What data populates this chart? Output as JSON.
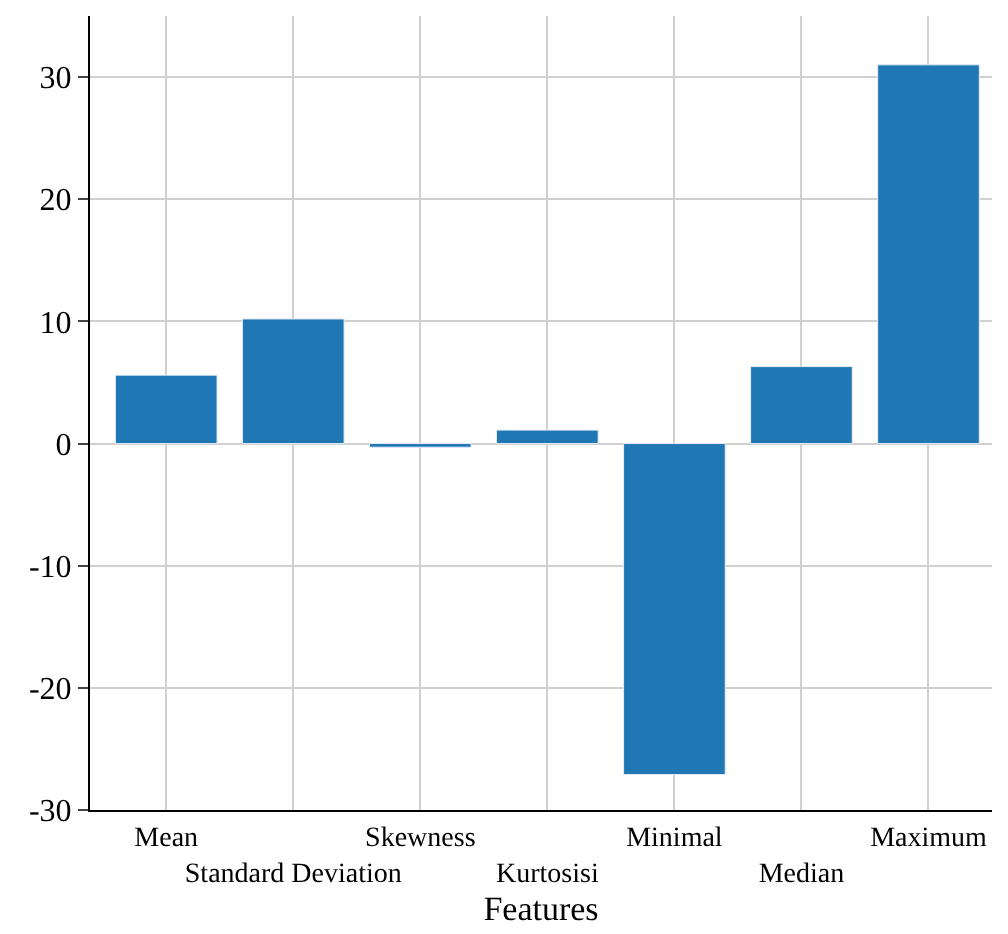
{
  "chart_data": {
    "type": "bar",
    "xlabel": "Features",
    "categories": [
      "Mean",
      "Standard Deviation",
      "Skewness",
      "Kurtosisi",
      "Minimal",
      "Median",
      "Maximum"
    ],
    "values": [
      5.6,
      10.2,
      -0.3,
      1.1,
      -27.1,
      6.3,
      31.0
    ],
    "color": "#1f77b4",
    "ylim": [
      -30,
      35
    ],
    "yticks": [
      -30,
      -20,
      -10,
      0,
      10,
      20,
      30
    ],
    "grid": true
  }
}
